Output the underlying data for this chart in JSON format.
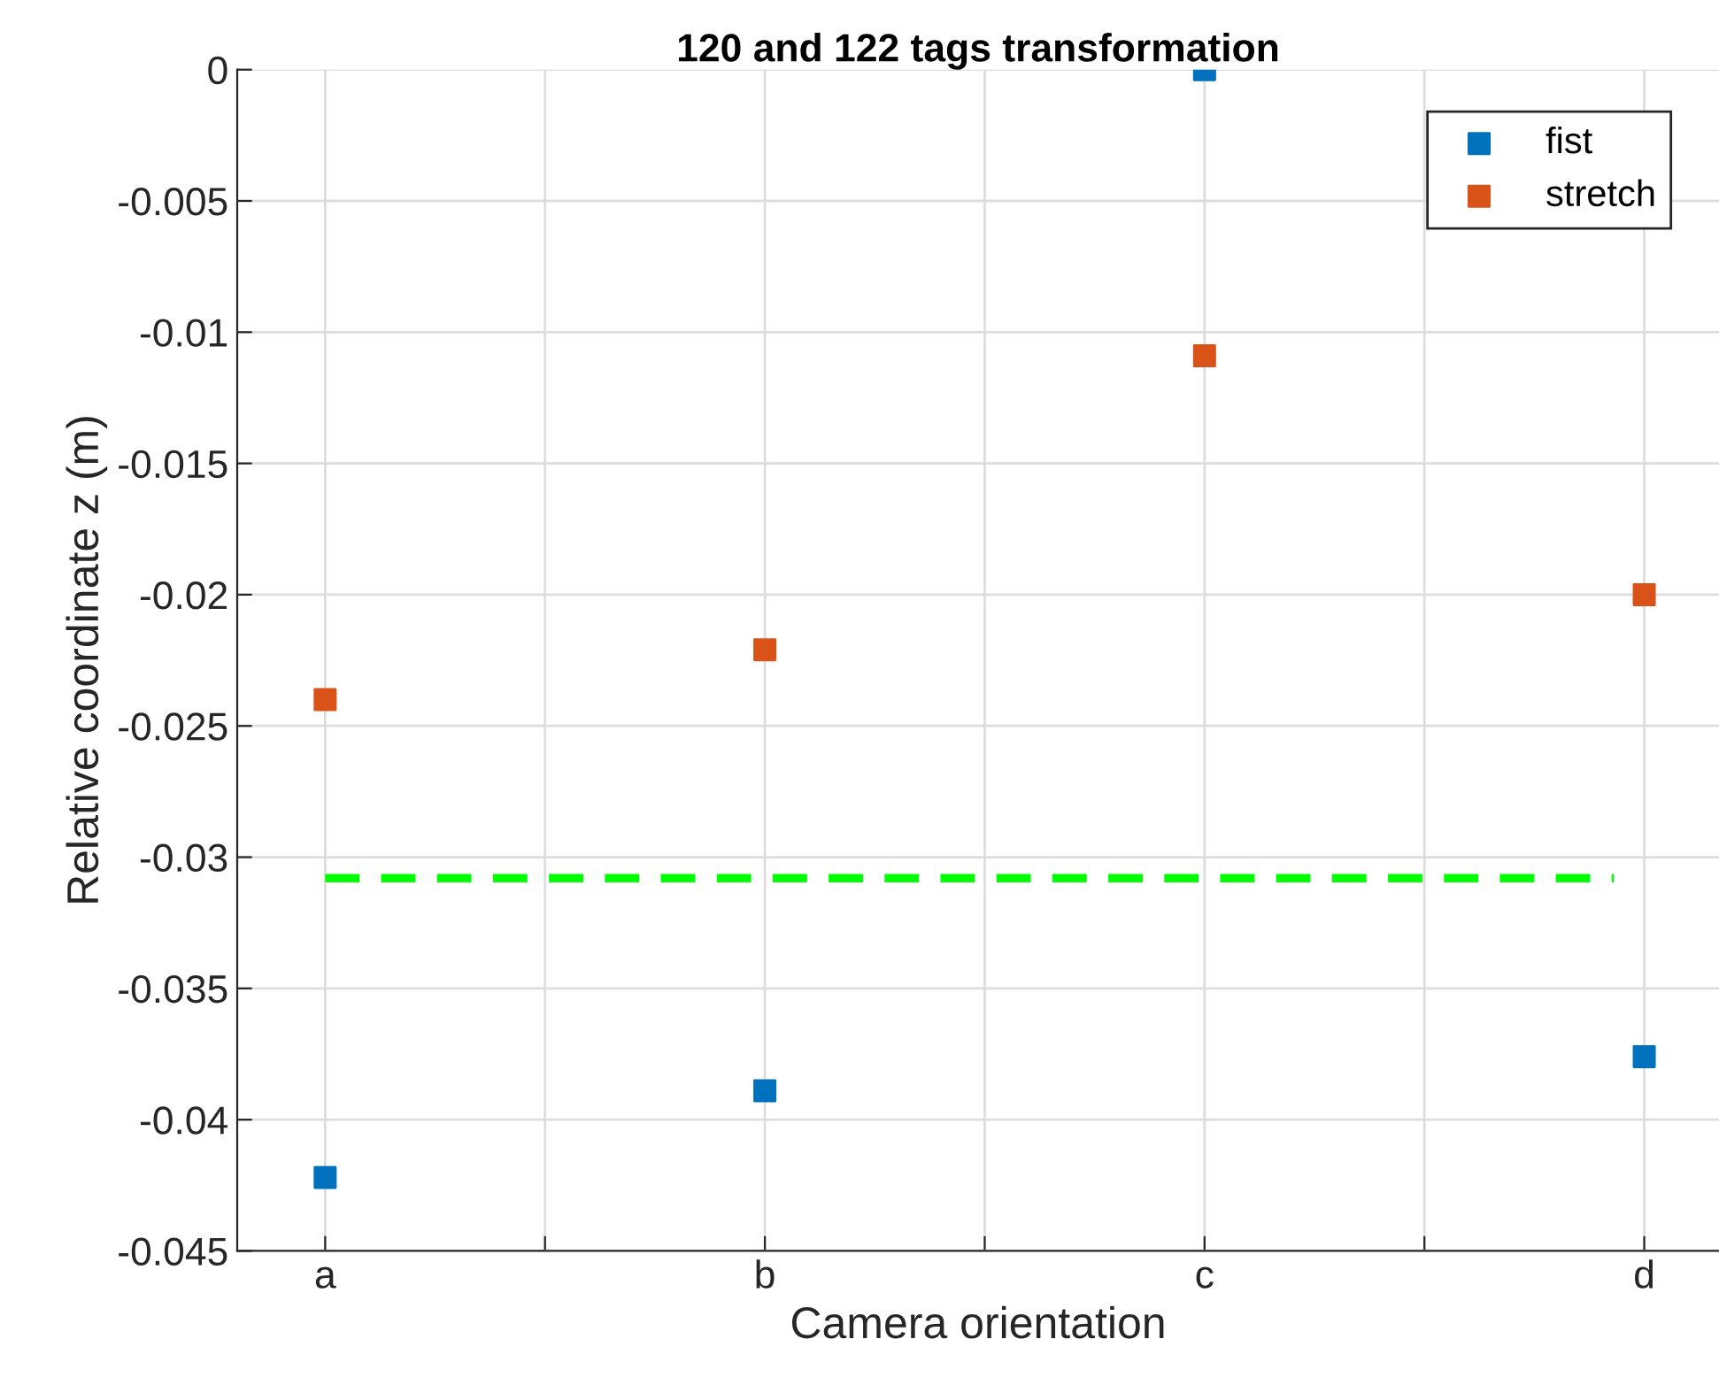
{
  "chart_data": {
    "type": "scatter",
    "title": "120 and 122 tags transformation",
    "xlabel": "Camera orientation",
    "ylabel": "Relative coordinate z (m)",
    "categories": [
      "a",
      null,
      "b",
      null,
      "c",
      null,
      "d"
    ],
    "series": [
      {
        "name": "fist",
        "color": "#0072bd",
        "values": [
          -0.0422,
          null,
          -0.0389,
          null,
          0,
          null,
          -0.0376
        ]
      },
      {
        "name": "stretch",
        "color": "#d95319",
        "values": [
          -0.024,
          null,
          -0.0221,
          null,
          -0.0109,
          null,
          -0.02
        ]
      }
    ],
    "ref_lines": [
      {
        "axis": "y",
        "value": -0.0308,
        "color": "#00ff00",
        "line_style": "dashed"
      }
    ],
    "marker": "square",
    "grid": true,
    "legend": "top right",
    "ylim": [
      -0.045,
      0
    ],
    "yticks": [
      -0.045,
      -0.04,
      -0.035,
      -0.03,
      -0.025,
      -0.02,
      -0.015,
      -0.01,
      -0.005,
      0
    ]
  }
}
